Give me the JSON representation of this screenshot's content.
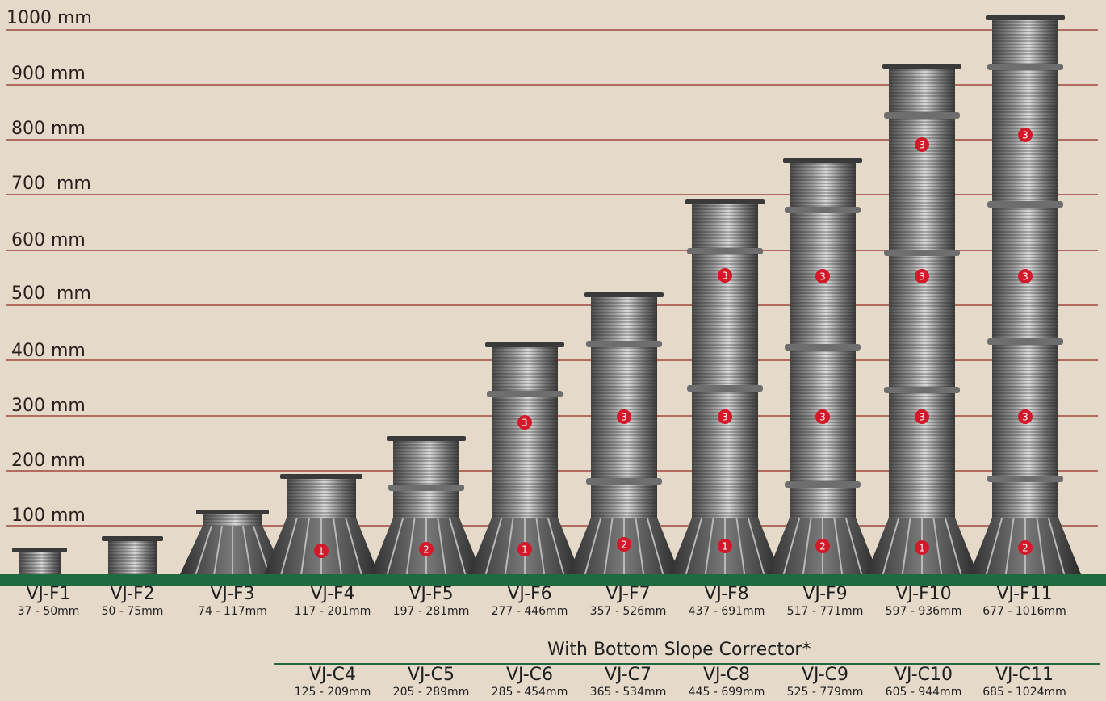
{
  "scale_labels": [
    "1000 mm",
    "900 mm",
    "800 mm",
    "700  mm",
    "600 mm",
    "500  mm",
    "400 mm",
    "300 mm",
    "200 mm",
    "100 mm"
  ],
  "pedestals": [
    {
      "name": "VJ-F1",
      "range": "37 - 50mm",
      "badges": []
    },
    {
      "name": "VJ-F2",
      "range": "50 - 75mm",
      "badges": []
    },
    {
      "name": "VJ-F3",
      "range": "74 - 117mm",
      "badges": []
    },
    {
      "name": "VJ-F4",
      "range": "117 - 201mm",
      "badges": [
        "1"
      ]
    },
    {
      "name": "VJ-F5",
      "range": "197 - 281mm",
      "badges": [
        "2"
      ]
    },
    {
      "name": "VJ-F6",
      "range": "277 - 446mm",
      "badges": [
        "1",
        "3"
      ]
    },
    {
      "name": "VJ-F7",
      "range": "357 - 526mm",
      "badges": [
        "2",
        "3"
      ]
    },
    {
      "name": "VJ-F8",
      "range": "437 - 691mm",
      "badges": [
        "1",
        "3",
        "3"
      ]
    },
    {
      "name": "VJ-F9",
      "range": "517 - 771mm",
      "badges": [
        "2",
        "3",
        "3"
      ]
    },
    {
      "name": "VJ-F10",
      "range": "597 - 936mm",
      "badges": [
        "1",
        "3",
        "3",
        "3"
      ]
    },
    {
      "name": "VJ-F11",
      "range": "677 - 1016mm",
      "badges": [
        "2",
        "3",
        "3",
        "3"
      ]
    }
  ],
  "slope_corrector": {
    "title": "With Bottom Slope Corrector*",
    "items": [
      {
        "name": "VJ-C4",
        "range": "125 - 209mm"
      },
      {
        "name": "VJ-C5",
        "range": "205 - 289mm"
      },
      {
        "name": "VJ-C6",
        "range": "285 - 454mm"
      },
      {
        "name": "VJ-C7",
        "range": "365 - 534mm"
      },
      {
        "name": "VJ-C8",
        "range": "445 - 699mm"
      },
      {
        "name": "VJ-C9",
        "range": "525 - 779mm"
      },
      {
        "name": "VJ-C10",
        "range": "605 - 944mm"
      },
      {
        "name": "VJ-C11",
        "range": "685 - 1024mm"
      }
    ]
  },
  "colors": {
    "background": "#e5dac9",
    "gridline": "#b16c60",
    "ground": "#1f6a40",
    "badge": "#d3182a"
  }
}
